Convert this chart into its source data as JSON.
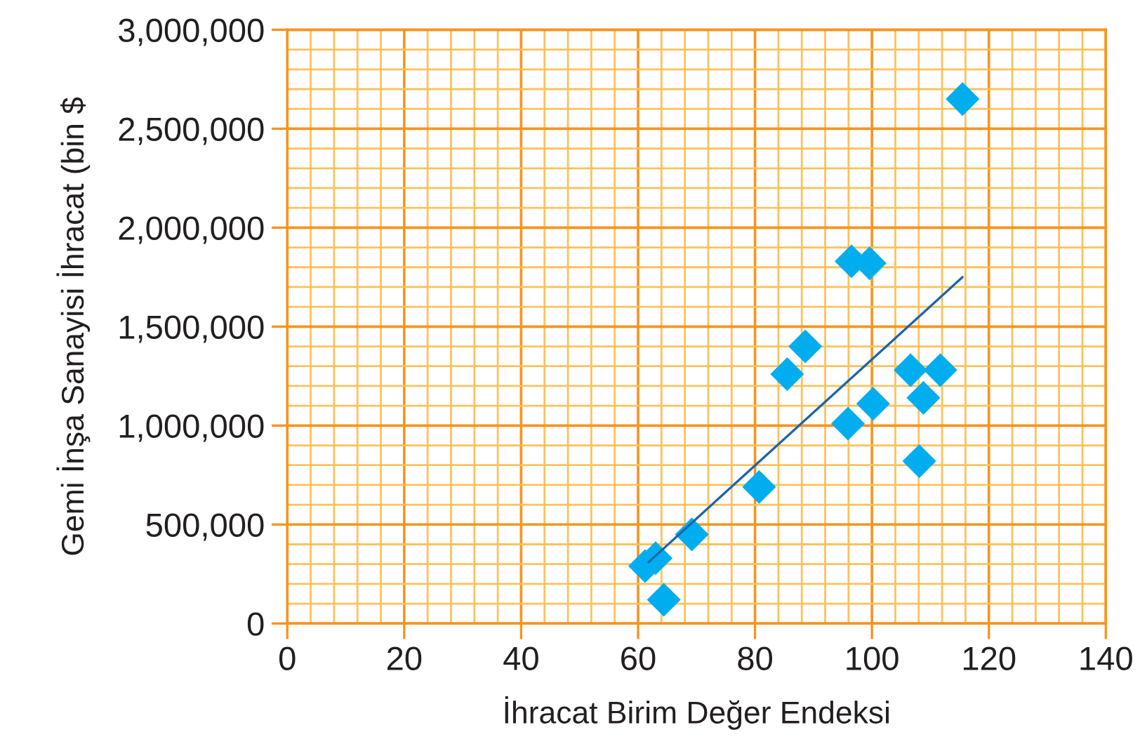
{
  "chart_data": {
    "type": "scatter",
    "xlabel": "İhracat Birim Değer Endeksi",
    "ylabel": "Gemi İnşa Sanayisi İhracat (bin $",
    "xlim": [
      0,
      140
    ],
    "xticks": [
      0,
      {
        "value": 4,
        "label": null
      },
      {
        "value": 8,
        "label": null
      },
      {
        "value": 12,
        "label": null
      },
      {
        "value": 16,
        "label": null
      },
      20,
      {
        "value": 24,
        "label": null
      },
      {
        "value": 28,
        "label": null
      },
      {
        "value": 32,
        "label": null
      },
      {
        "value": 36,
        "label": null
      },
      40,
      {
        "value": 44,
        "label": null
      },
      {
        "value": 48,
        "label": null
      },
      {
        "value": 52,
        "label": null
      },
      {
        "value": 56,
        "label": null
      },
      60,
      {
        "value": 64,
        "label": null
      },
      {
        "value": 68,
        "label": null
      },
      {
        "value": 72,
        "label": null
      },
      {
        "value": 76,
        "label": null
      },
      80,
      {
        "value": 84,
        "label": null
      },
      {
        "value": 88,
        "label": null
      },
      {
        "value": 92,
        "label": null
      },
      {
        "value": 96,
        "label": null
      },
      100,
      {
        "value": 104,
        "label": null
      },
      {
        "value": 108,
        "label": null
      },
      {
        "value": 112,
        "label": null
      },
      {
        "value": 116,
        "label": null
      },
      120,
      {
        "value": 124,
        "label": null
      },
      {
        "value": 128,
        "label": null
      },
      {
        "value": 132,
        "label": null
      },
      {
        "value": 136,
        "label": null
      },
      140
    ],
    "ylim": [
      0,
      3000000
    ],
    "yticks": [
      {
        "value": 0,
        "label": "0"
      },
      {
        "value": 100000,
        "label": null
      },
      {
        "value": 200000,
        "label": null
      },
      {
        "value": 300000,
        "label": null
      },
      {
        "value": 400000,
        "label": null
      },
      {
        "value": 500000,
        "label": "500,000"
      },
      {
        "value": 600000,
        "label": null
      },
      {
        "value": 700000,
        "label": null
      },
      {
        "value": 800000,
        "label": null
      },
      {
        "value": 900000,
        "label": null
      },
      {
        "value": 1000000,
        "label": "1,000,000"
      },
      {
        "value": 1100000,
        "label": null
      },
      {
        "value": 1200000,
        "label": null
      },
      {
        "value": 1300000,
        "label": null
      },
      {
        "value": 1400000,
        "label": null
      },
      {
        "value": 1500000,
        "label": "1,500,000"
      },
      {
        "value": 1600000,
        "label": null
      },
      {
        "value": 1700000,
        "label": null
      },
      {
        "value": 1800000,
        "label": null
      },
      {
        "value": 1900000,
        "label": null
      },
      {
        "value": 2000000,
        "label": "2,000,000"
      },
      {
        "value": 2100000,
        "label": null
      },
      {
        "value": 2200000,
        "label": null
      },
      {
        "value": 2300000,
        "label": null
      },
      {
        "value": 2400000,
        "label": null
      },
      {
        "value": 2500000,
        "label": "2,500,000"
      },
      {
        "value": 2600000,
        "label": null
      },
      {
        "value": 2700000,
        "label": null
      },
      {
        "value": 2800000,
        "label": null
      },
      {
        "value": 2900000,
        "label": null
      },
      {
        "value": 3000000,
        "label": "3,000,000"
      }
    ],
    "grid": true,
    "series": [
      {
        "color": "#00aeef",
        "marker": "diamond",
        "x": [
          115.5,
          96.5,
          99.6,
          88.6,
          85.5,
          106.6,
          111.7,
          108.8,
          100.2,
          95.9,
          108.1,
          80.7,
          69.2,
          61.2,
          63,
          64.4
        ],
        "values": [
          2650000,
          1830000,
          1820000,
          1400000,
          1260000,
          1280000,
          1280000,
          1140000,
          1110000,
          1010000,
          820000,
          690000,
          450000,
          290000,
          330000,
          120000
        ]
      },
      {
        "type": "line",
        "color": "#1f64a8",
        "x": [
          61.8,
          115.5
        ],
        "values": [
          310000,
          1750000
        ]
      }
    ]
  }
}
